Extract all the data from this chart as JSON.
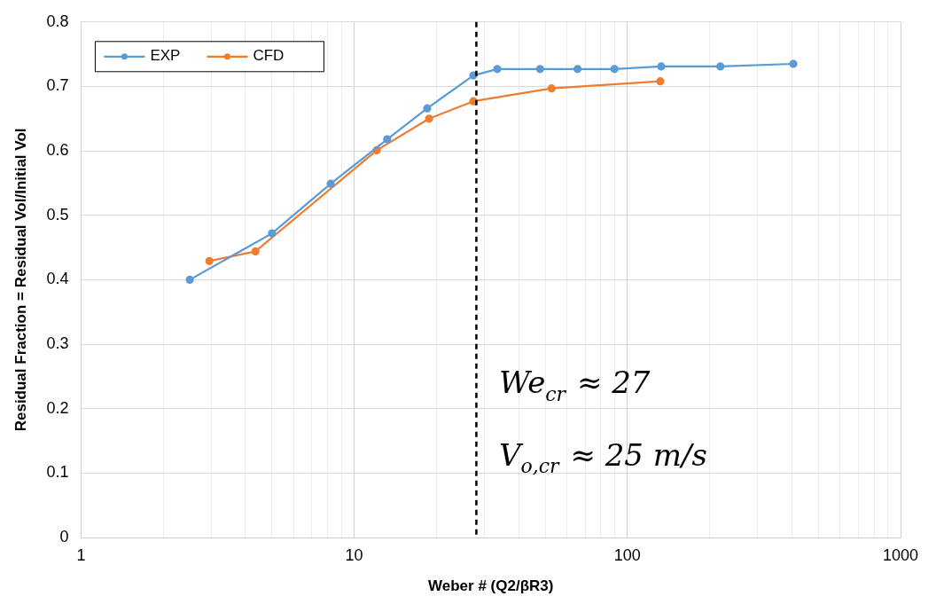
{
  "chart_data": {
    "type": "line",
    "xlabel": "Weber # (Q2/βR3)",
    "ylabel": "Residual Fraction = Residual Vol/Initial Vol",
    "log": "x",
    "grid": true,
    "legend": "top left",
    "marker": "circle",
    "xlim": [
      1,
      1000
    ],
    "ylim": [
      0,
      0.8
    ],
    "xticks": [
      1,
      {
        "value": 2,
        "label": null
      },
      {
        "value": 3,
        "label": null
      },
      {
        "value": 4,
        "label": null
      },
      {
        "value": 5,
        "label": null
      },
      {
        "value": 6,
        "label": null
      },
      {
        "value": 7,
        "label": null
      },
      {
        "value": 8,
        "label": null
      },
      {
        "value": 9,
        "label": null
      },
      10,
      {
        "value": 20,
        "label": null
      },
      {
        "value": 30,
        "label": null
      },
      {
        "value": 40,
        "label": null
      },
      {
        "value": 50,
        "label": null
      },
      {
        "value": 60,
        "label": null
      },
      {
        "value": 70,
        "label": null
      },
      {
        "value": 80,
        "label": null
      },
      {
        "value": 90,
        "label": null
      },
      100,
      {
        "value": 200,
        "label": null
      },
      {
        "value": 300,
        "label": null
      },
      {
        "value": 400,
        "label": null
      },
      {
        "value": 500,
        "label": null
      },
      {
        "value": 600,
        "label": null
      },
      {
        "value": 700,
        "label": null
      },
      {
        "value": 800,
        "label": null
      },
      {
        "value": 900,
        "label": null
      },
      1000
    ],
    "yticks": [
      0,
      0.1,
      0.2,
      0.3,
      0.4,
      0.5,
      0.6,
      0.7,
      0.8
    ],
    "series": [
      {
        "name": "EXP",
        "color": "#5b9bd5",
        "x": [
          2.5,
          5,
          8.2,
          13.2,
          18.5,
          27.3,
          33.4,
          47.9,
          65.7,
          89.7,
          133,
          219,
          405
        ],
        "values": [
          0.4,
          0.472,
          0.549,
          0.618,
          0.666,
          0.717,
          0.727,
          0.727,
          0.727,
          0.727,
          0.731,
          0.731,
          0.735
        ]
      },
      {
        "name": "CFD",
        "color": "#ed7d31",
        "x": [
          2.95,
          4.35,
          12.1,
          18.8,
          27.3,
          52.8,
          132
        ],
        "values": [
          0.429,
          0.444,
          0.601,
          0.65,
          0.677,
          0.697,
          0.708
        ]
      }
    ],
    "ref_lines": [
      {
        "axis": "x",
        "value": 28,
        "color": "#000000",
        "line_style": "dashed"
      }
    ],
    "annotations": [
      "We$_{cr}$ ≈ 27",
      "V$_{o,cr}$ ≈ 25 m/s"
    ]
  }
}
